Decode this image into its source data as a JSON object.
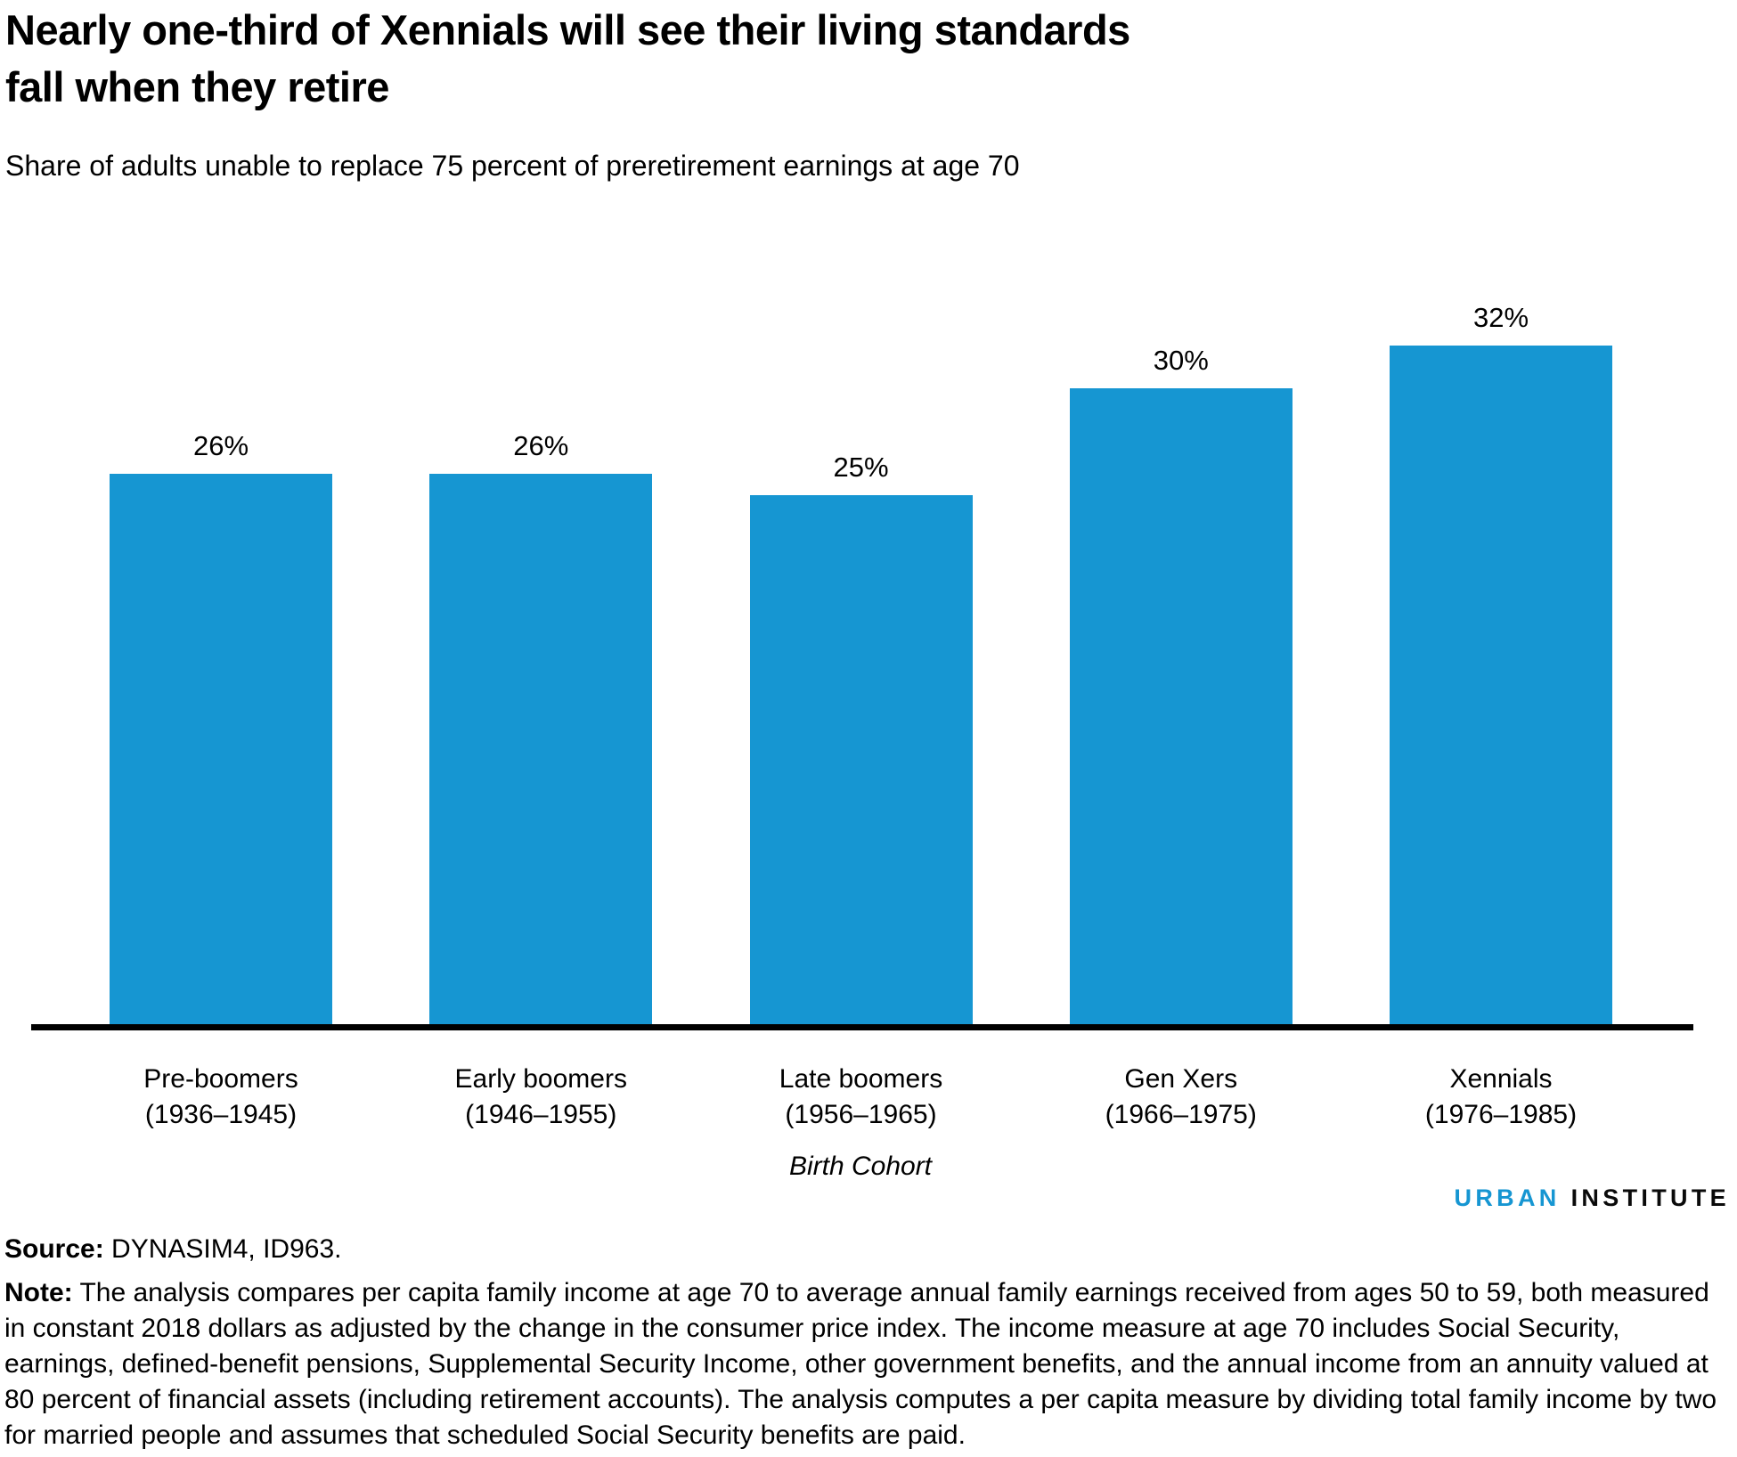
{
  "header": {
    "title_line1": "Nearly one-third of Xennials will see their living standards",
    "title_line2": "fall when they retire",
    "subtitle": "Share of adults unable to replace 75 percent of preretirement earnings at age 70"
  },
  "chart_data": {
    "type": "bar",
    "title": "Nearly one-third of Xennials will see their living standards fall when they retire",
    "subtitle": "Share of adults unable to replace 75 percent of preretirement earnings at age 70",
    "categories": [
      "Pre-boomers (1936–1945)",
      "Early boomers (1946–1955)",
      "Late boomers (1956–1965)",
      "Gen Xers (1966–1975)",
      "Xennials (1976–1985)"
    ],
    "category_lines": [
      [
        "Pre-boomers",
        "(1936–1945)"
      ],
      [
        "Early boomers",
        "(1946–1955)"
      ],
      [
        "Late boomers",
        "(1956–1965)"
      ],
      [
        "Gen Xers",
        "(1966–1975)"
      ],
      [
        "Xennials",
        "(1976–1985)"
      ]
    ],
    "values": [
      26,
      26,
      25,
      30,
      32
    ],
    "value_labels": [
      "26%",
      "26%",
      "25%",
      "30%",
      "32%"
    ],
    "unit": "percent",
    "xlabel": "Birth Cohort",
    "ylabel": "",
    "ylim": [
      0,
      35
    ],
    "grid": false,
    "legend": false,
    "y_axis_shown": false,
    "bar_color": "#1696d2",
    "axis_color": "#000000"
  },
  "footer": {
    "source_label": "Source:",
    "source_text": "DYNASIM4, ID963.",
    "note_label": "Note:",
    "note_text": "The analysis compares per capita family income at age 70 to average annual family earnings received from ages 50 to 59, both measured in constant 2018 dollars as adjusted by the change in the consumer price index. The income measure at age 70 includes Social Security, earnings, defined-benefit pensions, Supplemental Security Income, other government benefits, and the annual income from an annuity valued at 80 percent of financial assets (including retirement accounts). The analysis computes a per capita measure by dividing total family income by two for married people and assumes that scheduled Social Security benefits are paid.",
    "logo_urban": "URBAN",
    "logo_institute": "INSTITUTE"
  },
  "colors": {
    "bar_blue": "#1696d2",
    "logo_blue": "#1696d2",
    "text": "#000000"
  }
}
